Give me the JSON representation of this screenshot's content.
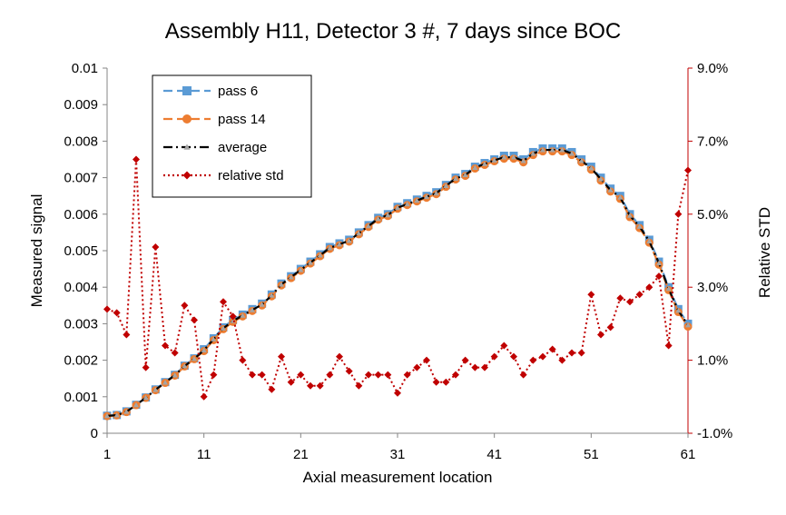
{
  "chart_data": {
    "type": "line",
    "title": "Assembly H11, Detector 3 #, 7 days since BOC",
    "xlabel": "Axial measurement location",
    "ylabel": "Measured signal",
    "y2label": "Relative STD",
    "xlim": [
      1,
      61
    ],
    "ylim": [
      0,
      0.01
    ],
    "y2lim": [
      -0.01,
      0.09
    ],
    "xticks": [
      "1",
      "11",
      "21",
      "31",
      "41",
      "51",
      "61"
    ],
    "yticks": [
      "0",
      "0.001",
      "0.002",
      "0.003",
      "0.004",
      "0.005",
      "0.006",
      "0.007",
      "0.008",
      "0.009",
      "0.01"
    ],
    "y2ticks": [
      "-1.0%",
      "1.0%",
      "3.0%",
      "5.0%",
      "7.0%",
      "9.0%"
    ],
    "grid": false,
    "legend_position": "top-left",
    "x": [
      1,
      2,
      3,
      4,
      5,
      6,
      7,
      8,
      9,
      10,
      11,
      12,
      13,
      14,
      15,
      16,
      17,
      18,
      19,
      20,
      21,
      22,
      23,
      24,
      25,
      26,
      27,
      28,
      29,
      30,
      31,
      32,
      33,
      34,
      35,
      36,
      37,
      38,
      39,
      40,
      41,
      42,
      43,
      44,
      45,
      46,
      47,
      48,
      49,
      50,
      51,
      52,
      53,
      54,
      55,
      56,
      57,
      58,
      59,
      60,
      61
    ],
    "series": [
      {
        "name": "pass 6",
        "axis": "left",
        "color": "#5b9bd5",
        "style": "dashed",
        "marker": "square",
        "values": [
          0.00048,
          0.0005,
          0.0006,
          0.00078,
          0.00098,
          0.0012,
          0.0014,
          0.0016,
          0.00185,
          0.00205,
          0.0023,
          0.0026,
          0.0029,
          0.0031,
          0.00325,
          0.0034,
          0.00355,
          0.0038,
          0.0041,
          0.0043,
          0.0045,
          0.0047,
          0.0049,
          0.0051,
          0.0052,
          0.0053,
          0.0055,
          0.0057,
          0.0059,
          0.006,
          0.0062,
          0.0063,
          0.0064,
          0.0065,
          0.0066,
          0.0068,
          0.007,
          0.0071,
          0.0073,
          0.0074,
          0.0075,
          0.0076,
          0.0076,
          0.0075,
          0.0077,
          0.0078,
          0.0078,
          0.0078,
          0.0077,
          0.0075,
          0.0073,
          0.007,
          0.0067,
          0.0065,
          0.006,
          0.0057,
          0.0053,
          0.0047,
          0.004,
          0.0034,
          0.003
        ]
      },
      {
        "name": "pass 14",
        "axis": "left",
        "color": "#ed7d31",
        "style": "dashed",
        "marker": "circle",
        "values": [
          0.00047,
          0.00049,
          0.00058,
          0.00077,
          0.00097,
          0.00118,
          0.00138,
          0.00158,
          0.00183,
          0.00203,
          0.00225,
          0.00255,
          0.00285,
          0.00305,
          0.0032,
          0.00335,
          0.0035,
          0.00375,
          0.00405,
          0.00425,
          0.00445,
          0.00465,
          0.00485,
          0.00505,
          0.00515,
          0.00525,
          0.00545,
          0.00565,
          0.00585,
          0.00595,
          0.00615,
          0.00625,
          0.00635,
          0.00645,
          0.00655,
          0.00675,
          0.00695,
          0.00705,
          0.00725,
          0.00735,
          0.00745,
          0.00752,
          0.00752,
          0.00742,
          0.00762,
          0.00772,
          0.00772,
          0.00772,
          0.00762,
          0.00742,
          0.00722,
          0.00692,
          0.00662,
          0.00642,
          0.00592,
          0.00562,
          0.00522,
          0.00462,
          0.00392,
          0.00332,
          0.00292
        ]
      },
      {
        "name": "average",
        "axis": "left",
        "color": "#000000",
        "style": "dashdot",
        "marker": "triangle",
        "values": [
          0.000475,
          0.000495,
          0.00059,
          0.000775,
          0.000975,
          0.00119,
          0.00139,
          0.00159,
          0.00184,
          0.00204,
          0.002275,
          0.002575,
          0.002875,
          0.003075,
          0.003225,
          0.003375,
          0.003525,
          0.003775,
          0.004075,
          0.004275,
          0.004475,
          0.004675,
          0.004875,
          0.005075,
          0.005175,
          0.005275,
          0.005475,
          0.005675,
          0.005875,
          0.005975,
          0.006175,
          0.006275,
          0.006375,
          0.006475,
          0.006575,
          0.006775,
          0.006975,
          0.007075,
          0.007275,
          0.007375,
          0.007475,
          0.00756,
          0.00756,
          0.00746,
          0.00766,
          0.00776,
          0.00776,
          0.00776,
          0.00766,
          0.00746,
          0.00726,
          0.00696,
          0.00666,
          0.00646,
          0.00596,
          0.00566,
          0.00526,
          0.00466,
          0.00396,
          0.00336,
          0.00296
        ]
      },
      {
        "name": "relative std",
        "axis": "right",
        "color": "#c00000",
        "style": "dotted",
        "marker": "diamond",
        "values": [
          0.024,
          0.023,
          0.017,
          0.065,
          0.008,
          0.041,
          0.014,
          0.012,
          0.025,
          0.021,
          0.0,
          0.006,
          0.026,
          0.022,
          0.01,
          0.006,
          0.006,
          0.002,
          0.011,
          0.004,
          0.006,
          0.003,
          0.003,
          0.006,
          0.011,
          0.007,
          0.003,
          0.006,
          0.006,
          0.006,
          0.001,
          0.006,
          0.008,
          0.01,
          0.004,
          0.004,
          0.006,
          0.01,
          0.008,
          0.008,
          0.011,
          0.014,
          0.011,
          0.006,
          0.01,
          0.011,
          0.013,
          0.01,
          0.012,
          0.012,
          0.028,
          0.017,
          0.019,
          0.027,
          0.026,
          0.028,
          0.03,
          0.033,
          0.014,
          0.05,
          0.062
        ]
      }
    ]
  }
}
